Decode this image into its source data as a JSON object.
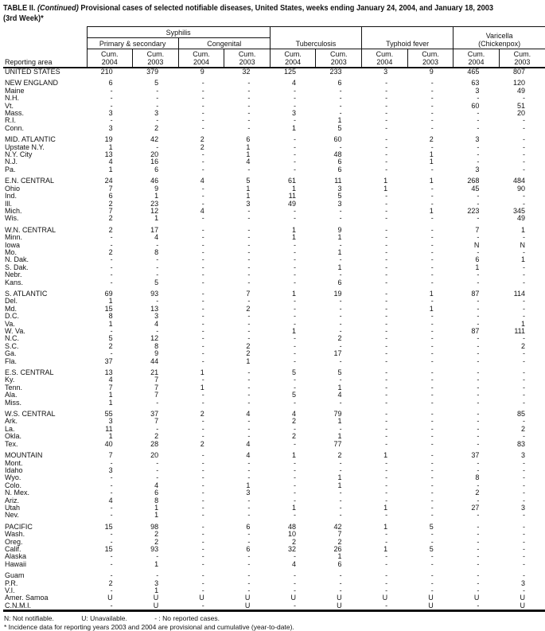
{
  "title": {
    "prefix": "TABLE II.",
    "continued": "(Continued)",
    "rest": "Provisional cases of selected notifiable diseases, United States, weeks ending January 24, 2004, and January 18, 2003",
    "line2": "(3rd Week)*"
  },
  "colors": {
    "text": "#111111",
    "background": "#ffffff",
    "rule": "#111111"
  },
  "table": {
    "header": {
      "reporting_area": "Reporting area",
      "syphilis": "Syphilis",
      "primary_secondary": "Primary & secondary",
      "congenital": "Congenital",
      "tuberculosis": "Tuberculosis",
      "typhoid_fever": "Typhoid fever",
      "varicella_line1": "Varicella",
      "varicella_line2": "(Chickenpox)"
    },
    "columns": [
      {
        "cum": "Cum.",
        "year": "2004"
      },
      {
        "cum": "Cum.",
        "year": "2003"
      },
      {
        "cum": "Cum.",
        "year": "2004"
      },
      {
        "cum": "Cum.",
        "year": "2003"
      },
      {
        "cum": "Cum.",
        "year": "2004"
      },
      {
        "cum": "Cum.",
        "year": "2003"
      },
      {
        "cum": "Cum.",
        "year": "2004"
      },
      {
        "cum": "Cum.",
        "year": "2003"
      },
      {
        "cum": "Cum.",
        "year": "2004"
      },
      {
        "cum": "Cum.",
        "year": "2003"
      }
    ],
    "rows": [
      {
        "area": "UNITED STATES",
        "v": [
          "210",
          "379",
          "9",
          "32",
          "125",
          "233",
          "3",
          "9",
          "465",
          "807"
        ]
      },
      null,
      {
        "area": "NEW ENGLAND",
        "v": [
          "6",
          "5",
          "-",
          "-",
          "4",
          "6",
          "-",
          "-",
          "63",
          "120"
        ]
      },
      {
        "area": "Maine",
        "v": [
          "-",
          "-",
          "-",
          "-",
          "-",
          "-",
          "-",
          "-",
          "3",
          "49"
        ]
      },
      {
        "area": "N.H.",
        "v": [
          "-",
          "-",
          "-",
          "-",
          "-",
          "-",
          "-",
          "-",
          "-",
          "-"
        ]
      },
      {
        "area": "Vt.",
        "v": [
          "-",
          "-",
          "-",
          "-",
          "-",
          "-",
          "-",
          "-",
          "60",
          "51"
        ]
      },
      {
        "area": "Mass.",
        "v": [
          "3",
          "3",
          "-",
          "-",
          "3",
          "-",
          "-",
          "-",
          "-",
          "20"
        ]
      },
      {
        "area": "R.I.",
        "v": [
          "-",
          "-",
          "-",
          "-",
          "-",
          "1",
          "-",
          "-",
          "-",
          "-"
        ]
      },
      {
        "area": "Conn.",
        "v": [
          "3",
          "2",
          "-",
          "-",
          "1",
          "5",
          "-",
          "-",
          "-",
          "-"
        ]
      },
      null,
      {
        "area": "MID. ATLANTIC",
        "v": [
          "19",
          "42",
          "2",
          "6",
          "-",
          "60",
          "-",
          "2",
          "3",
          "-"
        ]
      },
      {
        "area": "Upstate N.Y.",
        "v": [
          "1",
          "-",
          "2",
          "1",
          "-",
          "-",
          "-",
          "-",
          "-",
          "-"
        ]
      },
      {
        "area": "N.Y. City",
        "v": [
          "13",
          "20",
          "-",
          "1",
          "-",
          "48",
          "-",
          "1",
          "-",
          "-"
        ]
      },
      {
        "area": "N.J.",
        "v": [
          "4",
          "16",
          "-",
          "4",
          "-",
          "6",
          "-",
          "1",
          "-",
          "-"
        ]
      },
      {
        "area": "Pa.",
        "v": [
          "1",
          "6",
          "-",
          "-",
          "-",
          "6",
          "-",
          "-",
          "3",
          "-"
        ]
      },
      null,
      {
        "area": "E.N. CENTRAL",
        "v": [
          "24",
          "46",
          "4",
          "5",
          "61",
          "11",
          "1",
          "1",
          "268",
          "484"
        ]
      },
      {
        "area": "Ohio",
        "v": [
          "7",
          "9",
          "-",
          "1",
          "1",
          "3",
          "1",
          "-",
          "45",
          "90"
        ]
      },
      {
        "area": "Ind.",
        "v": [
          "6",
          "1",
          "-",
          "1",
          "11",
          "5",
          "-",
          "-",
          "-",
          "-"
        ]
      },
      {
        "area": "Ill.",
        "v": [
          "2",
          "23",
          "-",
          "3",
          "49",
          "3",
          "-",
          "-",
          "-",
          "-"
        ]
      },
      {
        "area": "Mich.",
        "v": [
          "7",
          "12",
          "4",
          "-",
          "-",
          "-",
          "-",
          "1",
          "223",
          "345"
        ]
      },
      {
        "area": "Wis.",
        "v": [
          "2",
          "1",
          "-",
          "-",
          "-",
          "-",
          "-",
          "-",
          "-",
          "49"
        ]
      },
      null,
      {
        "area": "W.N. CENTRAL",
        "v": [
          "2",
          "17",
          "-",
          "-",
          "1",
          "9",
          "-",
          "-",
          "7",
          "1"
        ]
      },
      {
        "area": "Minn.",
        "v": [
          "-",
          "4",
          "-",
          "-",
          "1",
          "1",
          "-",
          "-",
          "-",
          "-"
        ]
      },
      {
        "area": "Iowa",
        "v": [
          "-",
          "-",
          "-",
          "-",
          "-",
          "-",
          "-",
          "-",
          "N",
          "N"
        ]
      },
      {
        "area": "Mo.",
        "v": [
          "2",
          "8",
          "-",
          "-",
          "-",
          "1",
          "-",
          "-",
          "-",
          "-"
        ]
      },
      {
        "area": "N. Dak.",
        "v": [
          "-",
          "-",
          "-",
          "-",
          "-",
          "-",
          "-",
          "-",
          "6",
          "1"
        ]
      },
      {
        "area": "S. Dak.",
        "v": [
          "-",
          "-",
          "-",
          "-",
          "-",
          "1",
          "-",
          "-",
          "1",
          "-"
        ]
      },
      {
        "area": "Nebr.",
        "v": [
          "-",
          "-",
          "-",
          "-",
          "-",
          "-",
          "-",
          "-",
          "-",
          "-"
        ]
      },
      {
        "area": "Kans.",
        "v": [
          "-",
          "5",
          "-",
          "-",
          "-",
          "6",
          "-",
          "-",
          "-",
          "-"
        ]
      },
      null,
      {
        "area": "S. ATLANTIC",
        "v": [
          "69",
          "93",
          "-",
          "7",
          "1",
          "19",
          "-",
          "1",
          "87",
          "114"
        ]
      },
      {
        "area": "Del.",
        "v": [
          "1",
          "-",
          "-",
          "-",
          "-",
          "-",
          "-",
          "-",
          "-",
          "-"
        ]
      },
      {
        "area": "Md.",
        "v": [
          "15",
          "13",
          "-",
          "2",
          "-",
          "-",
          "-",
          "1",
          "-",
          "-"
        ]
      },
      {
        "area": "D.C.",
        "v": [
          "8",
          "3",
          "-",
          "-",
          "-",
          "-",
          "-",
          "-",
          "-",
          "-"
        ]
      },
      {
        "area": "Va.",
        "v": [
          "1",
          "4",
          "-",
          "-",
          "-",
          "-",
          "-",
          "-",
          "-",
          "1"
        ]
      },
      {
        "area": "W. Va.",
        "v": [
          "-",
          "-",
          "-",
          "-",
          "1",
          "-",
          "-",
          "-",
          "87",
          "111"
        ]
      },
      {
        "area": "N.C.",
        "v": [
          "5",
          "12",
          "-",
          "-",
          "-",
          "2",
          "-",
          "-",
          "-",
          "-"
        ]
      },
      {
        "area": "S.C.",
        "v": [
          "2",
          "8",
          "-",
          "2",
          "-",
          "-",
          "-",
          "-",
          "-",
          "2"
        ]
      },
      {
        "area": "Ga.",
        "v": [
          "-",
          "9",
          "-",
          "2",
          "-",
          "17",
          "-",
          "-",
          "-",
          "-"
        ]
      },
      {
        "area": "Fla.",
        "v": [
          "37",
          "44",
          "-",
          "1",
          "-",
          "-",
          "-",
          "-",
          "-",
          "-"
        ]
      },
      null,
      {
        "area": "E.S. CENTRAL",
        "v": [
          "13",
          "21",
          "1",
          "-",
          "5",
          "5",
          "-",
          "-",
          "-",
          "-"
        ]
      },
      {
        "area": "Ky.",
        "v": [
          "4",
          "7",
          "-",
          "-",
          "-",
          "-",
          "-",
          "-",
          "-",
          "-"
        ]
      },
      {
        "area": "Tenn.",
        "v": [
          "7",
          "7",
          "1",
          "-",
          "-",
          "1",
          "-",
          "-",
          "-",
          "-"
        ]
      },
      {
        "area": "Ala.",
        "v": [
          "1",
          "7",
          "-",
          "-",
          "5",
          "4",
          "-",
          "-",
          "-",
          "-"
        ]
      },
      {
        "area": "Miss.",
        "v": [
          "1",
          "-",
          "-",
          "-",
          "-",
          "-",
          "-",
          "-",
          "-",
          "-"
        ]
      },
      null,
      {
        "area": "W.S. CENTRAL",
        "v": [
          "55",
          "37",
          "2",
          "4",
          "4",
          "79",
          "-",
          "-",
          "-",
          "85"
        ]
      },
      {
        "area": "Ark.",
        "v": [
          "3",
          "7",
          "-",
          "-",
          "2",
          "1",
          "-",
          "-",
          "-",
          "-"
        ]
      },
      {
        "area": "La.",
        "v": [
          "11",
          "-",
          "-",
          "-",
          "-",
          "-",
          "-",
          "-",
          "-",
          "2"
        ]
      },
      {
        "area": "Okla.",
        "v": [
          "1",
          "2",
          "-",
          "-",
          "2",
          "1",
          "-",
          "-",
          "-",
          "-"
        ]
      },
      {
        "area": "Tex.",
        "v": [
          "40",
          "28",
          "2",
          "4",
          "-",
          "77",
          "-",
          "-",
          "-",
          "83"
        ]
      },
      null,
      {
        "area": "MOUNTAIN",
        "v": [
          "7",
          "20",
          "-",
          "4",
          "1",
          "2",
          "1",
          "-",
          "37",
          "3"
        ]
      },
      {
        "area": "Mont.",
        "v": [
          "-",
          "-",
          "-",
          "-",
          "-",
          "-",
          "-",
          "-",
          "-",
          "-"
        ]
      },
      {
        "area": "Idaho",
        "v": [
          "3",
          "-",
          "-",
          "-",
          "-",
          "-",
          "-",
          "-",
          "-",
          "-"
        ]
      },
      {
        "area": "Wyo.",
        "v": [
          "-",
          "-",
          "-",
          "-",
          "-",
          "1",
          "-",
          "-",
          "8",
          "-"
        ]
      },
      {
        "area": "Colo.",
        "v": [
          "-",
          "4",
          "-",
          "1",
          "-",
          "1",
          "-",
          "-",
          "-",
          "-"
        ]
      },
      {
        "area": "N. Mex.",
        "v": [
          "-",
          "6",
          "-",
          "3",
          "-",
          "-",
          "-",
          "-",
          "2",
          "-"
        ]
      },
      {
        "area": "Ariz.",
        "v": [
          "4",
          "8",
          "-",
          "-",
          "-",
          "-",
          "-",
          "-",
          "-",
          "-"
        ]
      },
      {
        "area": "Utah",
        "v": [
          "-",
          "1",
          "-",
          "-",
          "1",
          "-",
          "1",
          "-",
          "27",
          "3"
        ]
      },
      {
        "area": "Nev.",
        "v": [
          "-",
          "1",
          "-",
          "-",
          "-",
          "-",
          "-",
          "-",
          "-",
          "-"
        ]
      },
      null,
      {
        "area": "PACIFIC",
        "v": [
          "15",
          "98",
          "-",
          "6",
          "48",
          "42",
          "1",
          "5",
          "-",
          "-"
        ]
      },
      {
        "area": "Wash.",
        "v": [
          "-",
          "2",
          "-",
          "-",
          "10",
          "7",
          "-",
          "-",
          "-",
          "-"
        ]
      },
      {
        "area": "Oreg.",
        "v": [
          "-",
          "2",
          "-",
          "-",
          "2",
          "2",
          "-",
          "-",
          "-",
          "-"
        ]
      },
      {
        "area": "Calif.",
        "v": [
          "15",
          "93",
          "-",
          "6",
          "32",
          "26",
          "1",
          "5",
          "-",
          "-"
        ]
      },
      {
        "area": "Alaska",
        "v": [
          "-",
          "-",
          "-",
          "-",
          "-",
          "1",
          "-",
          "-",
          "-",
          "-"
        ]
      },
      {
        "area": "Hawaii",
        "v": [
          "-",
          "1",
          "-",
          "-",
          "4",
          "6",
          "-",
          "-",
          "-",
          "-"
        ]
      },
      null,
      {
        "area": "Guam",
        "v": [
          "-",
          "-",
          "-",
          "-",
          "-",
          "-",
          "-",
          "-",
          "-",
          "-"
        ]
      },
      {
        "area": "P.R.",
        "v": [
          "2",
          "3",
          "-",
          "-",
          "-",
          "-",
          "-",
          "-",
          "-",
          "3"
        ]
      },
      {
        "area": "V.I.",
        "v": [
          "-",
          "1",
          "-",
          "-",
          "-",
          "-",
          "-",
          "-",
          "-",
          "-"
        ]
      },
      {
        "area": "Amer. Samoa",
        "v": [
          "U",
          "U",
          "U",
          "U",
          "U",
          "U",
          "U",
          "U",
          "U",
          "U"
        ]
      },
      {
        "area": "C.N.M.I.",
        "v": [
          "-",
          "U",
          "-",
          "U",
          "-",
          "U",
          "-",
          "U",
          "-",
          "U"
        ]
      }
    ]
  },
  "footnotes": {
    "not_notifiable": "N: Not notifiable.",
    "unavailable": "U: Unavailable.",
    "no_cases": "- : No reported cases.",
    "incidence": "* Incidence data for reporting years 2003 and 2004 are provisional and cumulative (year-to-date)."
  }
}
